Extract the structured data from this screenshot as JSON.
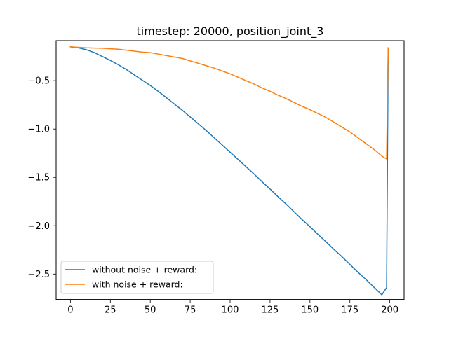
{
  "chart_data": {
    "type": "line",
    "title": "timestep: 20000, position_joint_3",
    "xlabel": "",
    "ylabel": "",
    "xlim": [
      -8.95,
      208.95
    ],
    "ylim": [
      -2.763,
      -0.086
    ],
    "xticks": [
      0,
      25,
      50,
      75,
      100,
      125,
      150,
      175,
      200
    ],
    "yticks": [
      -2.5,
      -2.0,
      -1.5,
      -1.0,
      -0.5
    ],
    "xtick_labels": [
      "0",
      "25",
      "50",
      "75",
      "100",
      "125",
      "150",
      "175",
      "200"
    ],
    "ytick_labels": [
      "−2.5",
      "−2.0",
      "−1.5",
      "−1.0",
      "−0.5"
    ],
    "grid": false,
    "legend_position": "lower-left",
    "series": [
      {
        "name": "without noise + reward:",
        "color": "#1f77b4",
        "x": [
          0,
          5,
          10,
          15,
          20,
          25,
          30,
          35,
          40,
          45,
          50,
          55,
          60,
          65,
          70,
          75,
          80,
          85,
          90,
          95,
          100,
          105,
          110,
          115,
          120,
          125,
          130,
          135,
          140,
          145,
          150,
          155,
          160,
          165,
          170,
          175,
          180,
          185,
          190,
          195,
          198,
          199
        ],
        "y": [
          -0.15,
          -0.16,
          -0.18,
          -0.21,
          -0.25,
          -0.29,
          -0.335,
          -0.385,
          -0.44,
          -0.495,
          -0.55,
          -0.61,
          -0.675,
          -0.74,
          -0.805,
          -0.875,
          -0.945,
          -1.015,
          -1.09,
          -1.165,
          -1.24,
          -1.315,
          -1.39,
          -1.465,
          -1.545,
          -1.62,
          -1.7,
          -1.775,
          -1.855,
          -1.935,
          -2.01,
          -2.09,
          -2.165,
          -2.245,
          -2.32,
          -2.4,
          -2.48,
          -2.555,
          -2.635,
          -2.715,
          -2.64,
          -0.16
        ]
      },
      {
        "name": "with noise + reward:",
        "color": "#ff7f0e",
        "x": [
          0,
          5,
          10,
          15,
          20,
          25,
          30,
          35,
          40,
          45,
          50,
          55,
          60,
          65,
          70,
          75,
          80,
          85,
          90,
          95,
          100,
          105,
          110,
          115,
          120,
          125,
          130,
          135,
          140,
          145,
          150,
          155,
          160,
          165,
          170,
          175,
          180,
          185,
          190,
          195,
          198,
          199
        ],
        "y": [
          -0.15,
          -0.155,
          -0.16,
          -0.163,
          -0.165,
          -0.17,
          -0.175,
          -0.185,
          -0.195,
          -0.205,
          -0.21,
          -0.225,
          -0.24,
          -0.255,
          -0.27,
          -0.295,
          -0.32,
          -0.345,
          -0.37,
          -0.4,
          -0.43,
          -0.465,
          -0.5,
          -0.535,
          -0.575,
          -0.61,
          -0.65,
          -0.685,
          -0.725,
          -0.765,
          -0.8,
          -0.84,
          -0.88,
          -0.93,
          -0.98,
          -1.03,
          -1.09,
          -1.15,
          -1.21,
          -1.28,
          -1.31,
          -0.16
        ]
      }
    ]
  }
}
